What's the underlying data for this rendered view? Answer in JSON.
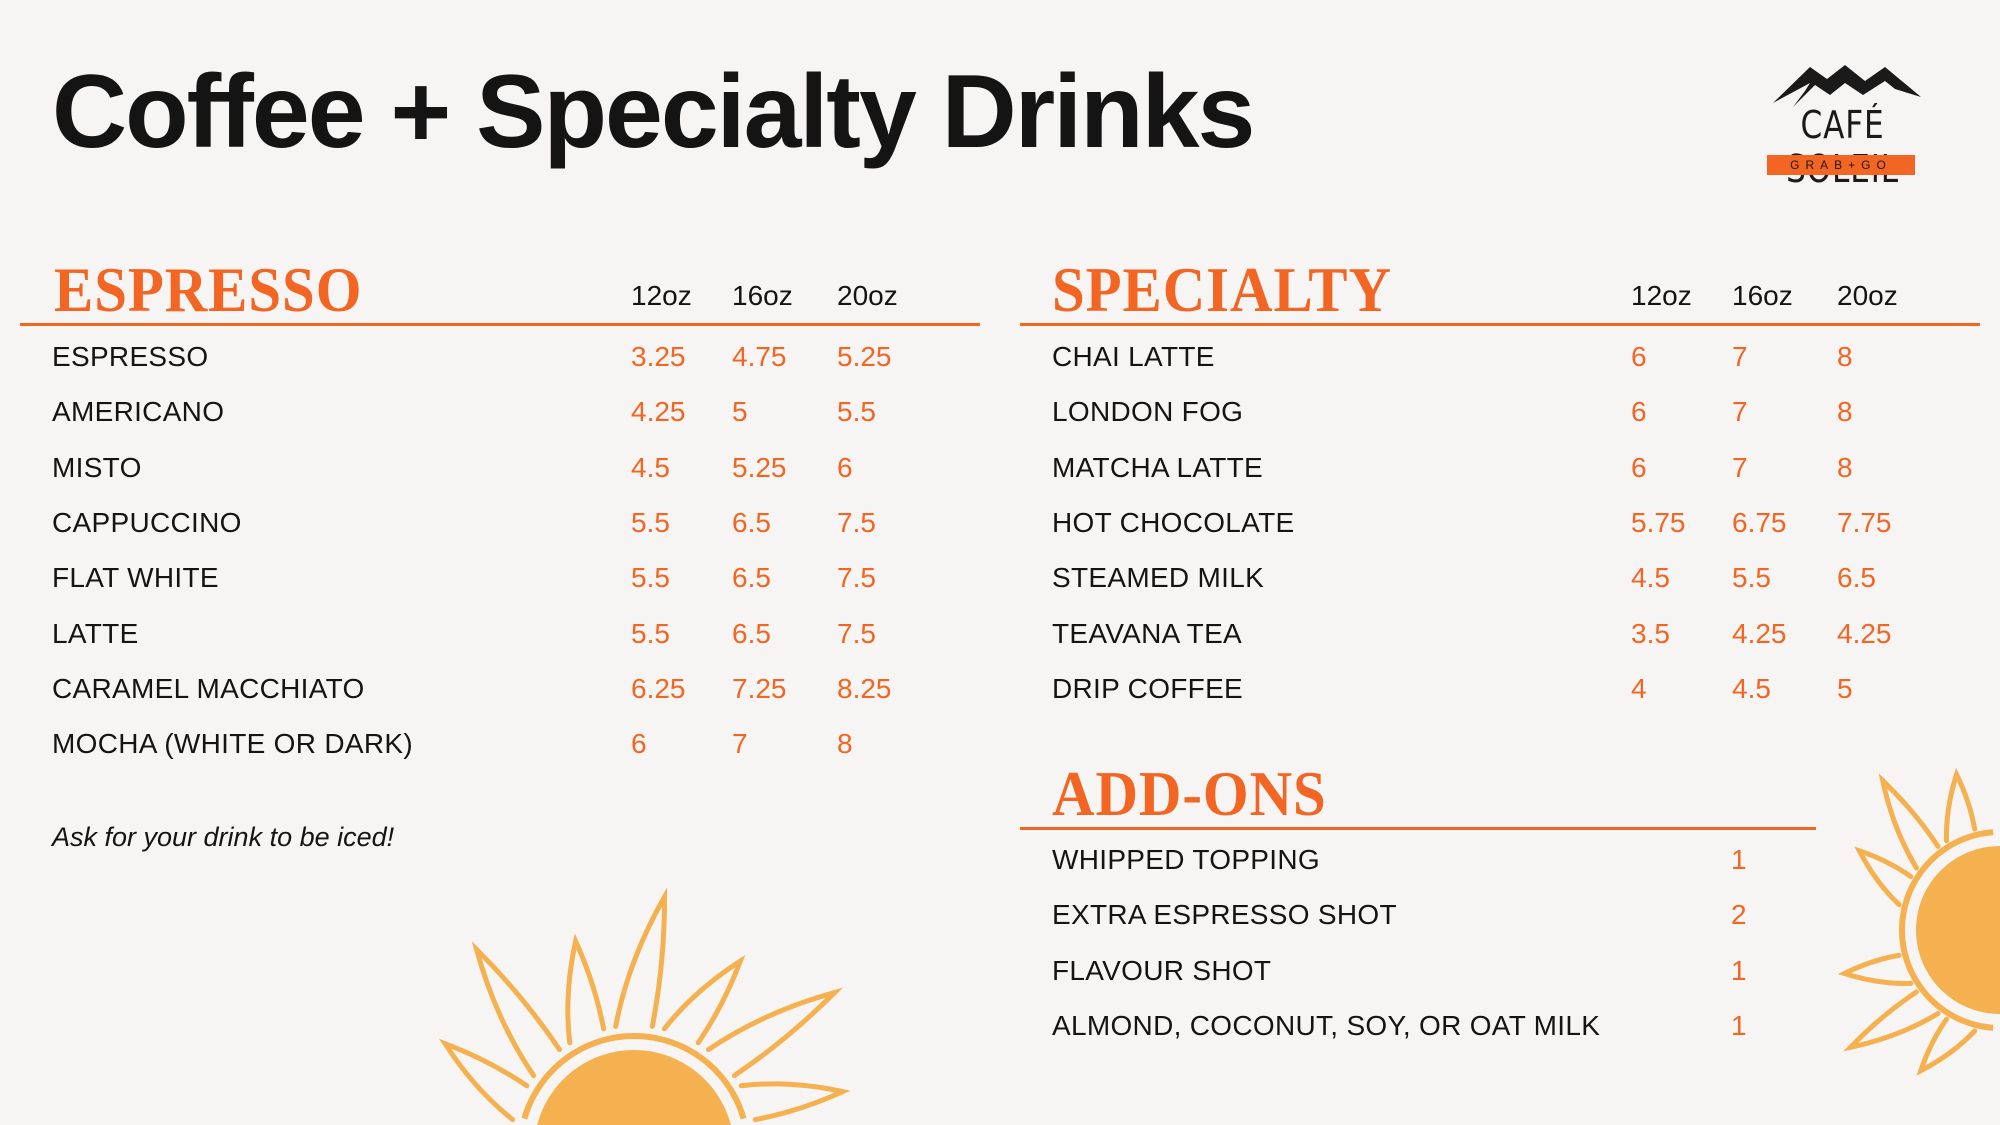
{
  "title": "Coffee + Specialty Drinks",
  "logo": {
    "name": "CAFÉ SOLEIL",
    "tagline": "GRAB+GO"
  },
  "colors": {
    "accent": "#f26522",
    "sun": "#f5b04f",
    "background": "#f7f5f3",
    "text": "#141414"
  },
  "espresso": {
    "heading": "ESPRESSO",
    "sizes": [
      "12oz",
      "16oz",
      "20oz"
    ],
    "items": [
      {
        "name": "ESPRESSO",
        "prices": [
          "3.25",
          "4.75",
          "5.25"
        ]
      },
      {
        "name": "AMERICANO",
        "prices": [
          "4.25",
          "5",
          "5.5"
        ]
      },
      {
        "name": "MISTO",
        "prices": [
          "4.5",
          "5.25",
          "6"
        ]
      },
      {
        "name": "CAPPUCCINO",
        "prices": [
          "5.5",
          "6.5",
          "7.5"
        ]
      },
      {
        "name": "FLAT WHITE",
        "prices": [
          "5.5",
          "6.5",
          "7.5"
        ]
      },
      {
        "name": "LATTE",
        "prices": [
          "5.5",
          "6.5",
          "7.5"
        ]
      },
      {
        "name": "CARAMEL MACCHIATO",
        "prices": [
          "6.25",
          "7.25",
          "8.25"
        ]
      },
      {
        "name": "MOCHA (WHITE OR DARK)",
        "prices": [
          "6",
          "7",
          "8"
        ]
      }
    ],
    "note": "Ask for your drink to be iced!"
  },
  "specialty": {
    "heading": "SPECIALTY",
    "sizes": [
      "12oz",
      "16oz",
      "20oz"
    ],
    "items": [
      {
        "name": "CHAI LATTE",
        "prices": [
          "6",
          "7",
          "8"
        ]
      },
      {
        "name": "LONDON FOG",
        "prices": [
          "6",
          "7",
          "8"
        ]
      },
      {
        "name": "MATCHA LATTE",
        "prices": [
          "6",
          "7",
          "8"
        ]
      },
      {
        "name": "HOT CHOCOLATE",
        "prices": [
          "5.75",
          "6.75",
          "7.75"
        ]
      },
      {
        "name": "STEAMED MILK",
        "prices": [
          "4.5",
          "5.5",
          "6.5"
        ]
      },
      {
        "name": "TEAVANA TEA",
        "prices": [
          "3.5",
          "4.25",
          "4.25"
        ]
      },
      {
        "name": "DRIP COFFEE",
        "prices": [
          "4",
          "4.5",
          "5"
        ]
      }
    ]
  },
  "addons": {
    "heading": "ADD-ONS",
    "items": [
      {
        "name": "WHIPPED TOPPING",
        "price": "1"
      },
      {
        "name": "EXTRA ESPRESSO SHOT",
        "price": "2"
      },
      {
        "name": "FLAVOUR SHOT",
        "price": "1"
      },
      {
        "name": "ALMOND, COCONUT, SOY, OR OAT MILK",
        "price": "1"
      }
    ]
  }
}
